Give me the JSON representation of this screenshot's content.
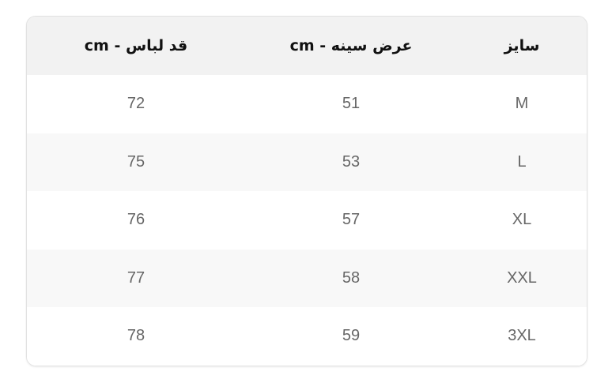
{
  "table": {
    "headers": [
      "سایز",
      "عرض سینه - cm",
      "قد لباس - cm"
    ],
    "rows": [
      [
        "M",
        "51",
        "72"
      ],
      [
        "L",
        "53",
        "75"
      ],
      [
        "XL",
        "57",
        "76"
      ],
      [
        "XXL",
        "58",
        "77"
      ],
      [
        "3XL",
        "59",
        "78"
      ]
    ]
  }
}
